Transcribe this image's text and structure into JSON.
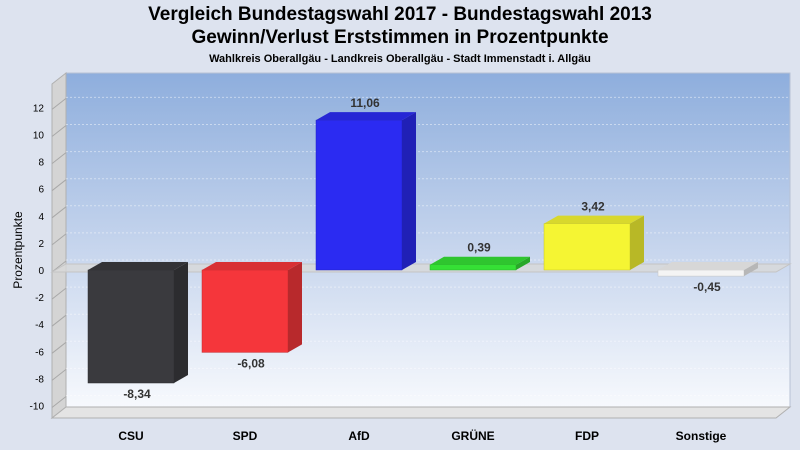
{
  "header": {
    "title_line1": "Vergleich Bundestagswahl 2017 - Bundestagswahl 2013",
    "title_line2": "Gewinn/Verlust Erststimmen in Prozentpunkte",
    "subtitle": "Wahlkreis Oberallgäu - Landkreis Oberallgäu - Stadt Immenstadt i. Allgäu"
  },
  "chart_data": {
    "type": "bar",
    "title": "Vergleich Bundestagswahl 2017 - Bundestagswahl 2013 Gewinn/Verlust Erststimmen in Prozentpunkte",
    "subtitle": "Wahlkreis Oberallgäu - Landkreis Oberallgäu - Stadt Immenstadt i. Allgäu",
    "ylabel": "Prozentpunkte",
    "xlabel": "",
    "categories": [
      "CSU",
      "SPD",
      "AfD",
      "GRÜNE",
      "FDP",
      "Sonstige"
    ],
    "values": [
      -8.34,
      -6.08,
      11.06,
      0.39,
      3.42,
      -0.45
    ],
    "value_labels": [
      "-8,34",
      "-6,08",
      "11,06",
      "0,39",
      "3,42",
      "-0,45"
    ],
    "colors": [
      "#3a3a3e",
      "#f5363b",
      "#2b2bf2",
      "#35e035",
      "#f5f533",
      "#f4f4f4"
    ],
    "ylim": [
      -11,
      13
    ],
    "yticks": [
      -10,
      -8,
      -6,
      -4,
      -2,
      0,
      2,
      4,
      6,
      8,
      10,
      12
    ],
    "grid": true,
    "style": "3d"
  }
}
